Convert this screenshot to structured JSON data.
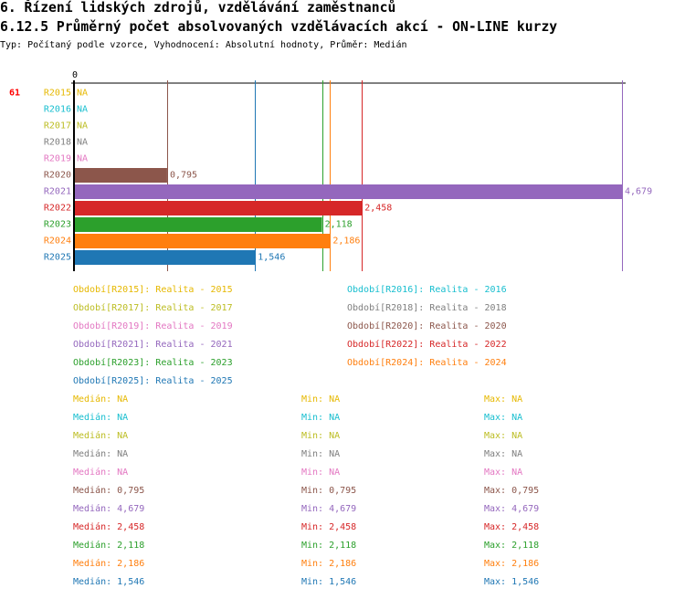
{
  "header": {
    "title": "6. Řízení lidských zdrojů, vzdělávání zaměstnanců",
    "subtitle": "6.12.5 Průměrný počet absolvovaných vzdělávacích akcí - ON-LINE kurzy",
    "type_line": "Typ: Počítaný podle vzorce, Vyhodnocení: Absolutní hodnoty, Průměr: Medián"
  },
  "chart_data": {
    "type": "bar",
    "orientation": "horizontal",
    "count_label": "61",
    "axis_zero_label": "0",
    "xlim": [
      0,
      4.679
    ],
    "categories": [
      "R2015",
      "R2016",
      "R2017",
      "R2018",
      "R2019",
      "R2020",
      "R2021",
      "R2022",
      "R2023",
      "R2024",
      "R2025"
    ],
    "values": [
      null,
      null,
      null,
      null,
      null,
      0.795,
      4.679,
      2.458,
      2.118,
      2.186,
      1.546
    ],
    "value_labels": [
      "NA",
      "NA",
      "NA",
      "NA",
      "NA",
      "0,795",
      "4,679",
      "2,458",
      "2,118",
      "2,186",
      "1,546"
    ],
    "colors": [
      "#e6b800",
      "#17becf",
      "#bcbd22",
      "#7f7f7f",
      "#e377c2",
      "#8c564b",
      "#9467bd",
      "#d62728",
      "#2ca02c",
      "#ff7f0e",
      "#1f77b4"
    ],
    "legend": [
      "Období[R2015]: Realita - 2015",
      "Období[R2016]: Realita - 2016",
      "Období[R2017]: Realita - 2017",
      "Období[R2018]: Realita - 2018",
      "Období[R2019]: Realita - 2019",
      "Období[R2020]: Realita - 2020",
      "Období[R2021]: Realita - 2021",
      "Období[R2022]: Realita - 2022",
      "Období[R2023]: Realita - 2023",
      "Období[R2024]: Realita - 2024",
      "Období[R2025]: Realita - 2025"
    ],
    "stats": [
      {
        "median": "Medián: NA",
        "min": "Min: NA",
        "max": "Max: NA"
      },
      {
        "median": "Medián: NA",
        "min": "Min: NA",
        "max": "Max: NA"
      },
      {
        "median": "Medián: NA",
        "min": "Min: NA",
        "max": "Max: NA"
      },
      {
        "median": "Medián: NA",
        "min": "Min: NA",
        "max": "Max: NA"
      },
      {
        "median": "Medián: NA",
        "min": "Min: NA",
        "max": "Max: NA"
      },
      {
        "median": "Medián: 0,795",
        "min": "Min: 0,795",
        "max": "Max: 0,795"
      },
      {
        "median": "Medián: 4,679",
        "min": "Min: 4,679",
        "max": "Max: 4,679"
      },
      {
        "median": "Medián: 2,458",
        "min": "Min: 2,458",
        "max": "Max: 2,458"
      },
      {
        "median": "Medián: 2,118",
        "min": "Min: 2,118",
        "max": "Max: 2,118"
      },
      {
        "median": "Medián: 2,186",
        "min": "Min: 2,186",
        "max": "Max: 2,186"
      },
      {
        "median": "Medián: 1,546",
        "min": "Min: 1,546",
        "max": "Max: 1,546"
      }
    ]
  }
}
